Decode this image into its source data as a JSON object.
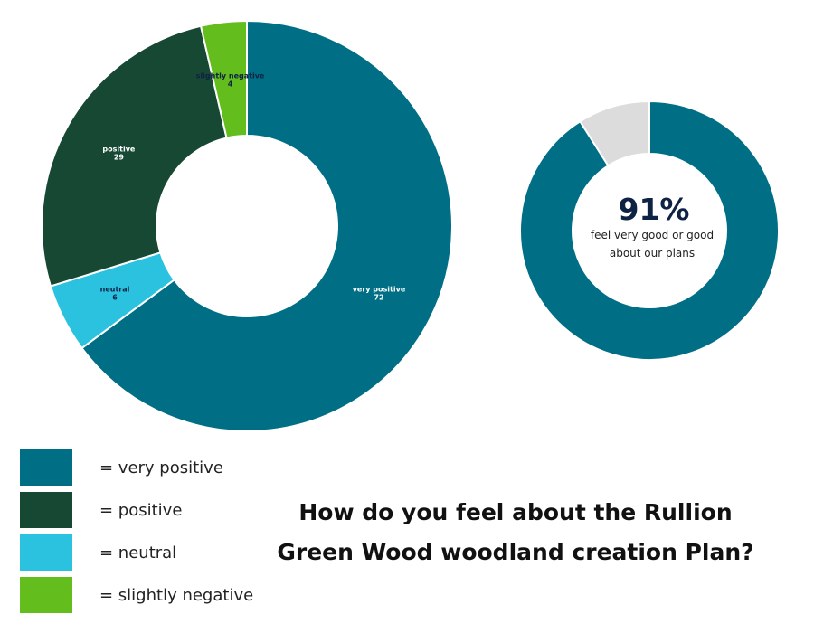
{
  "chart_data": [
    {
      "type": "pie",
      "donut": true,
      "categories": [
        "very positive",
        "neutral",
        "positive",
        "slightly negative"
      ],
      "values": [
        72,
        6,
        29,
        4
      ],
      "colors": [
        "#006f85",
        "#2bc2df",
        "#174834",
        "#62bd1d"
      ],
      "slice_labels": [
        {
          "name": "very positive",
          "value": "72",
          "text_color": "#ffffff"
        },
        {
          "name": "neutral",
          "value": "6",
          "text_color": "#0e2244"
        },
        {
          "name": "positive",
          "value": "29",
          "text_color": "#ffffff"
        },
        {
          "name": "slightly negative",
          "value": "4",
          "text_color": "#0e2244"
        }
      ]
    },
    {
      "type": "pie",
      "donut": true,
      "values": [
        91,
        9
      ],
      "colors": [
        "#006f85",
        "#dcdcdc"
      ],
      "center_text": {
        "value": "91%",
        "line1": "feel very good or good",
        "line2": "about our plans"
      }
    }
  ],
  "legend": [
    {
      "label": "= very positive",
      "color": "#006f85"
    },
    {
      "label": "= positive",
      "color": "#174834"
    },
    {
      "label": "= neutral",
      "color": "#2bc2df"
    },
    {
      "label": "= slightly negative",
      "color": "#62bd1d"
    }
  ],
  "question": {
    "line1": "How do you feel about the Rullion",
    "line2": "Green Wood woodland creation Plan?"
  }
}
